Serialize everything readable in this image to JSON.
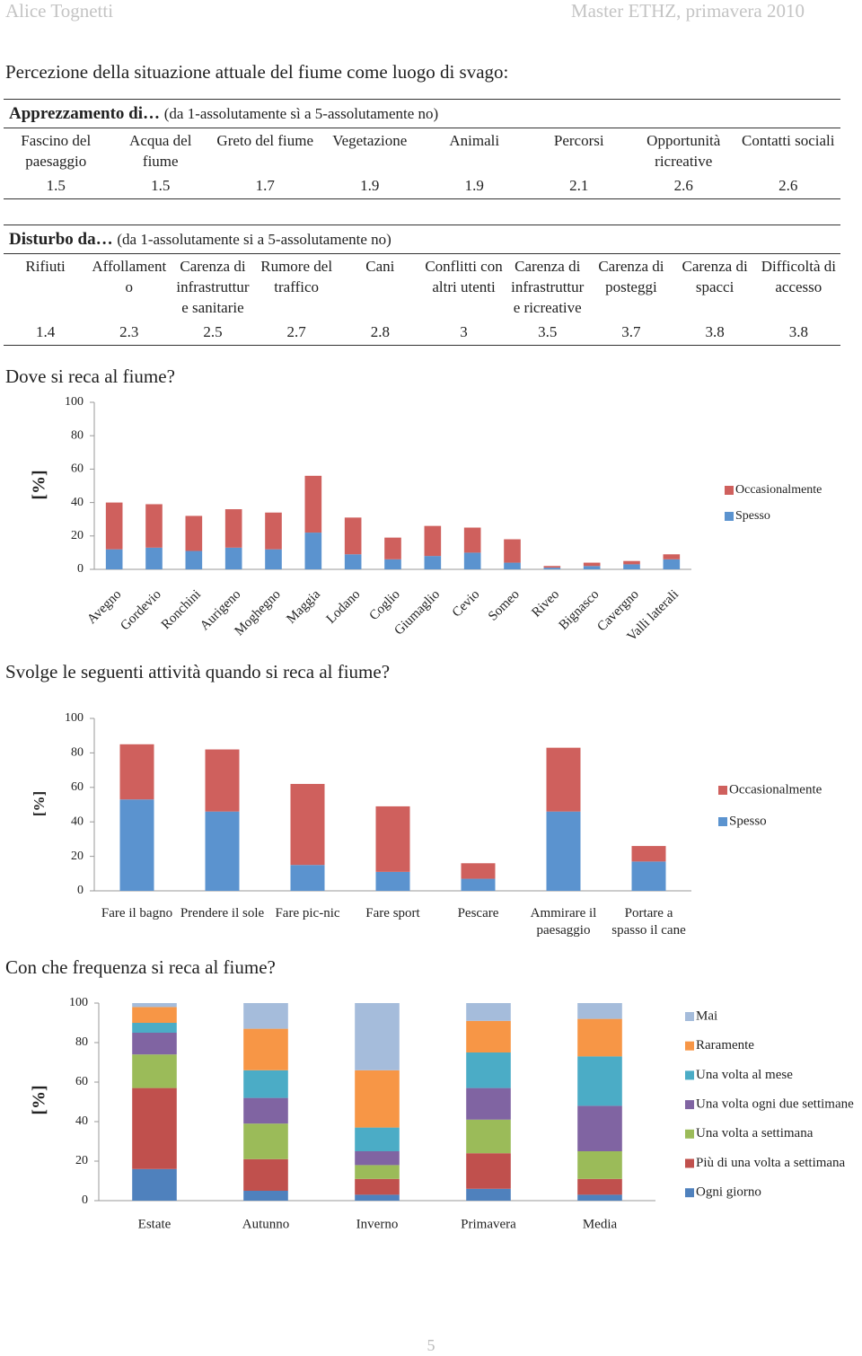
{
  "header": {
    "left": "Alice Tognetti",
    "right": "Master ETHZ, primavera 2010"
  },
  "section_title": "Percezione della situazione attuale del fiume come luogo di svago:",
  "tables": [
    {
      "title": "Apprezzamento di…",
      "subtitle": "(da 1-assolutamente sì a 5-assolutamente no)",
      "columns": [
        "Fascino del paesaggio",
        "Acqua del fiume",
        "Greto del fiume",
        "Vegetazione",
        "Animali",
        "Percorsi",
        "Opportunità ricreative",
        "Contatti sociali"
      ],
      "values": [
        1.5,
        1.5,
        1.7,
        1.9,
        1.9,
        2.1,
        2.6,
        2.6
      ]
    },
    {
      "title": "Disturbo da…",
      "subtitle": "(da 1-assolutamente si a 5-assolutamente no)",
      "columns": [
        "Rifiuti",
        "Affollamento",
        "Carenza di infrastrutture sanitarie",
        "Rumore del traffico",
        "Cani",
        "Conflitti con altri utenti",
        "Carenza di infrastrutture ricreative",
        "Carenza di posteggi",
        "Carenza di spacci",
        "Difficoltà di accesso"
      ],
      "values": [
        1.4,
        2.3,
        2.5,
        2.7,
        2.8,
        3,
        3.5,
        3.7,
        3.8,
        3.8
      ]
    }
  ],
  "chart_data": [
    {
      "type": "stacked_bar",
      "title": "Dove si reca al fiume?",
      "y_label": "[%]",
      "categories": [
        "Avegno",
        "Gordevio",
        "Ronchini",
        "Aurigeno",
        "Moghegno",
        "Maggia",
        "Lodano",
        "Coglio",
        "Giumaglio",
        "Cevio",
        "Someo",
        "Riveo",
        "Bignasco",
        "Cavergno",
        "Valli laterali"
      ],
      "series": [
        {
          "name": "Spesso",
          "color": "#5b93cf",
          "values": [
            12,
            13,
            11,
            13,
            12,
            22,
            9,
            6,
            8,
            10,
            4,
            1,
            2,
            3,
            6
          ]
        },
        {
          "name": "Occasionalmente",
          "color": "#cf605d",
          "values": [
            28,
            26,
            21,
            23,
            22,
            34,
            22,
            13,
            18,
            15,
            14,
            1,
            2,
            2,
            3
          ]
        }
      ],
      "ylim": [
        0,
        100
      ],
      "yticks": [
        0,
        20,
        40,
        60,
        80,
        100
      ],
      "legend": "right"
    },
    {
      "type": "stacked_bar",
      "title": "Svolge le seguenti attività quando si reca al fiume?",
      "y_label": "[%]",
      "categories": [
        "Fare il bagno",
        "Prendere il sole",
        "Fare pic-nic",
        "Fare sport",
        "Pescare",
        "Ammirare il paesaggio",
        "Portare a spasso il cane"
      ],
      "series": [
        {
          "name": "Spesso",
          "color": "#5b93cf",
          "values": [
            53,
            46,
            15,
            11,
            7,
            46,
            17
          ]
        },
        {
          "name": "Occasionalmente",
          "color": "#cf605d",
          "values": [
            32,
            36,
            47,
            38,
            9,
            37,
            9
          ]
        }
      ],
      "ylim": [
        0,
        100
      ],
      "yticks": [
        0,
        20,
        40,
        60,
        80,
        100
      ],
      "legend": "right"
    },
    {
      "type": "stacked_bar",
      "title": "Con che frequenza si reca al fiume?",
      "y_label": "[%]",
      "categories": [
        "Estate",
        "Autunno",
        "Inverno",
        "Primavera",
        "Media"
      ],
      "series": [
        {
          "name": "Ogni giorno",
          "color": "#4f81bd",
          "values": [
            16,
            5,
            3,
            6,
            3
          ]
        },
        {
          "name": "Più di una volta a settimana",
          "color": "#c0504d",
          "values": [
            41,
            16,
            8,
            18,
            8
          ]
        },
        {
          "name": "Una volta a settimana",
          "color": "#9bbb59",
          "values": [
            17,
            18,
            7,
            17,
            14
          ]
        },
        {
          "name": "Una volta ogni due settimane",
          "color": "#8064a2",
          "values": [
            11,
            13,
            7,
            16,
            23
          ]
        },
        {
          "name": "Una volta al mese",
          "color": "#4bacc6",
          "values": [
            5,
            14,
            12,
            18,
            25
          ]
        },
        {
          "name": "Raramente",
          "color": "#f79646",
          "values": [
            8,
            21,
            29,
            16,
            19
          ]
        },
        {
          "name": "Mai",
          "color": "#a5bcdb",
          "values": [
            2,
            13,
            34,
            9,
            8
          ]
        }
      ],
      "ylim": [
        0,
        100
      ],
      "yticks": [
        0,
        20,
        40,
        60,
        80,
        100
      ],
      "legend": "right"
    }
  ],
  "page_number": "5"
}
